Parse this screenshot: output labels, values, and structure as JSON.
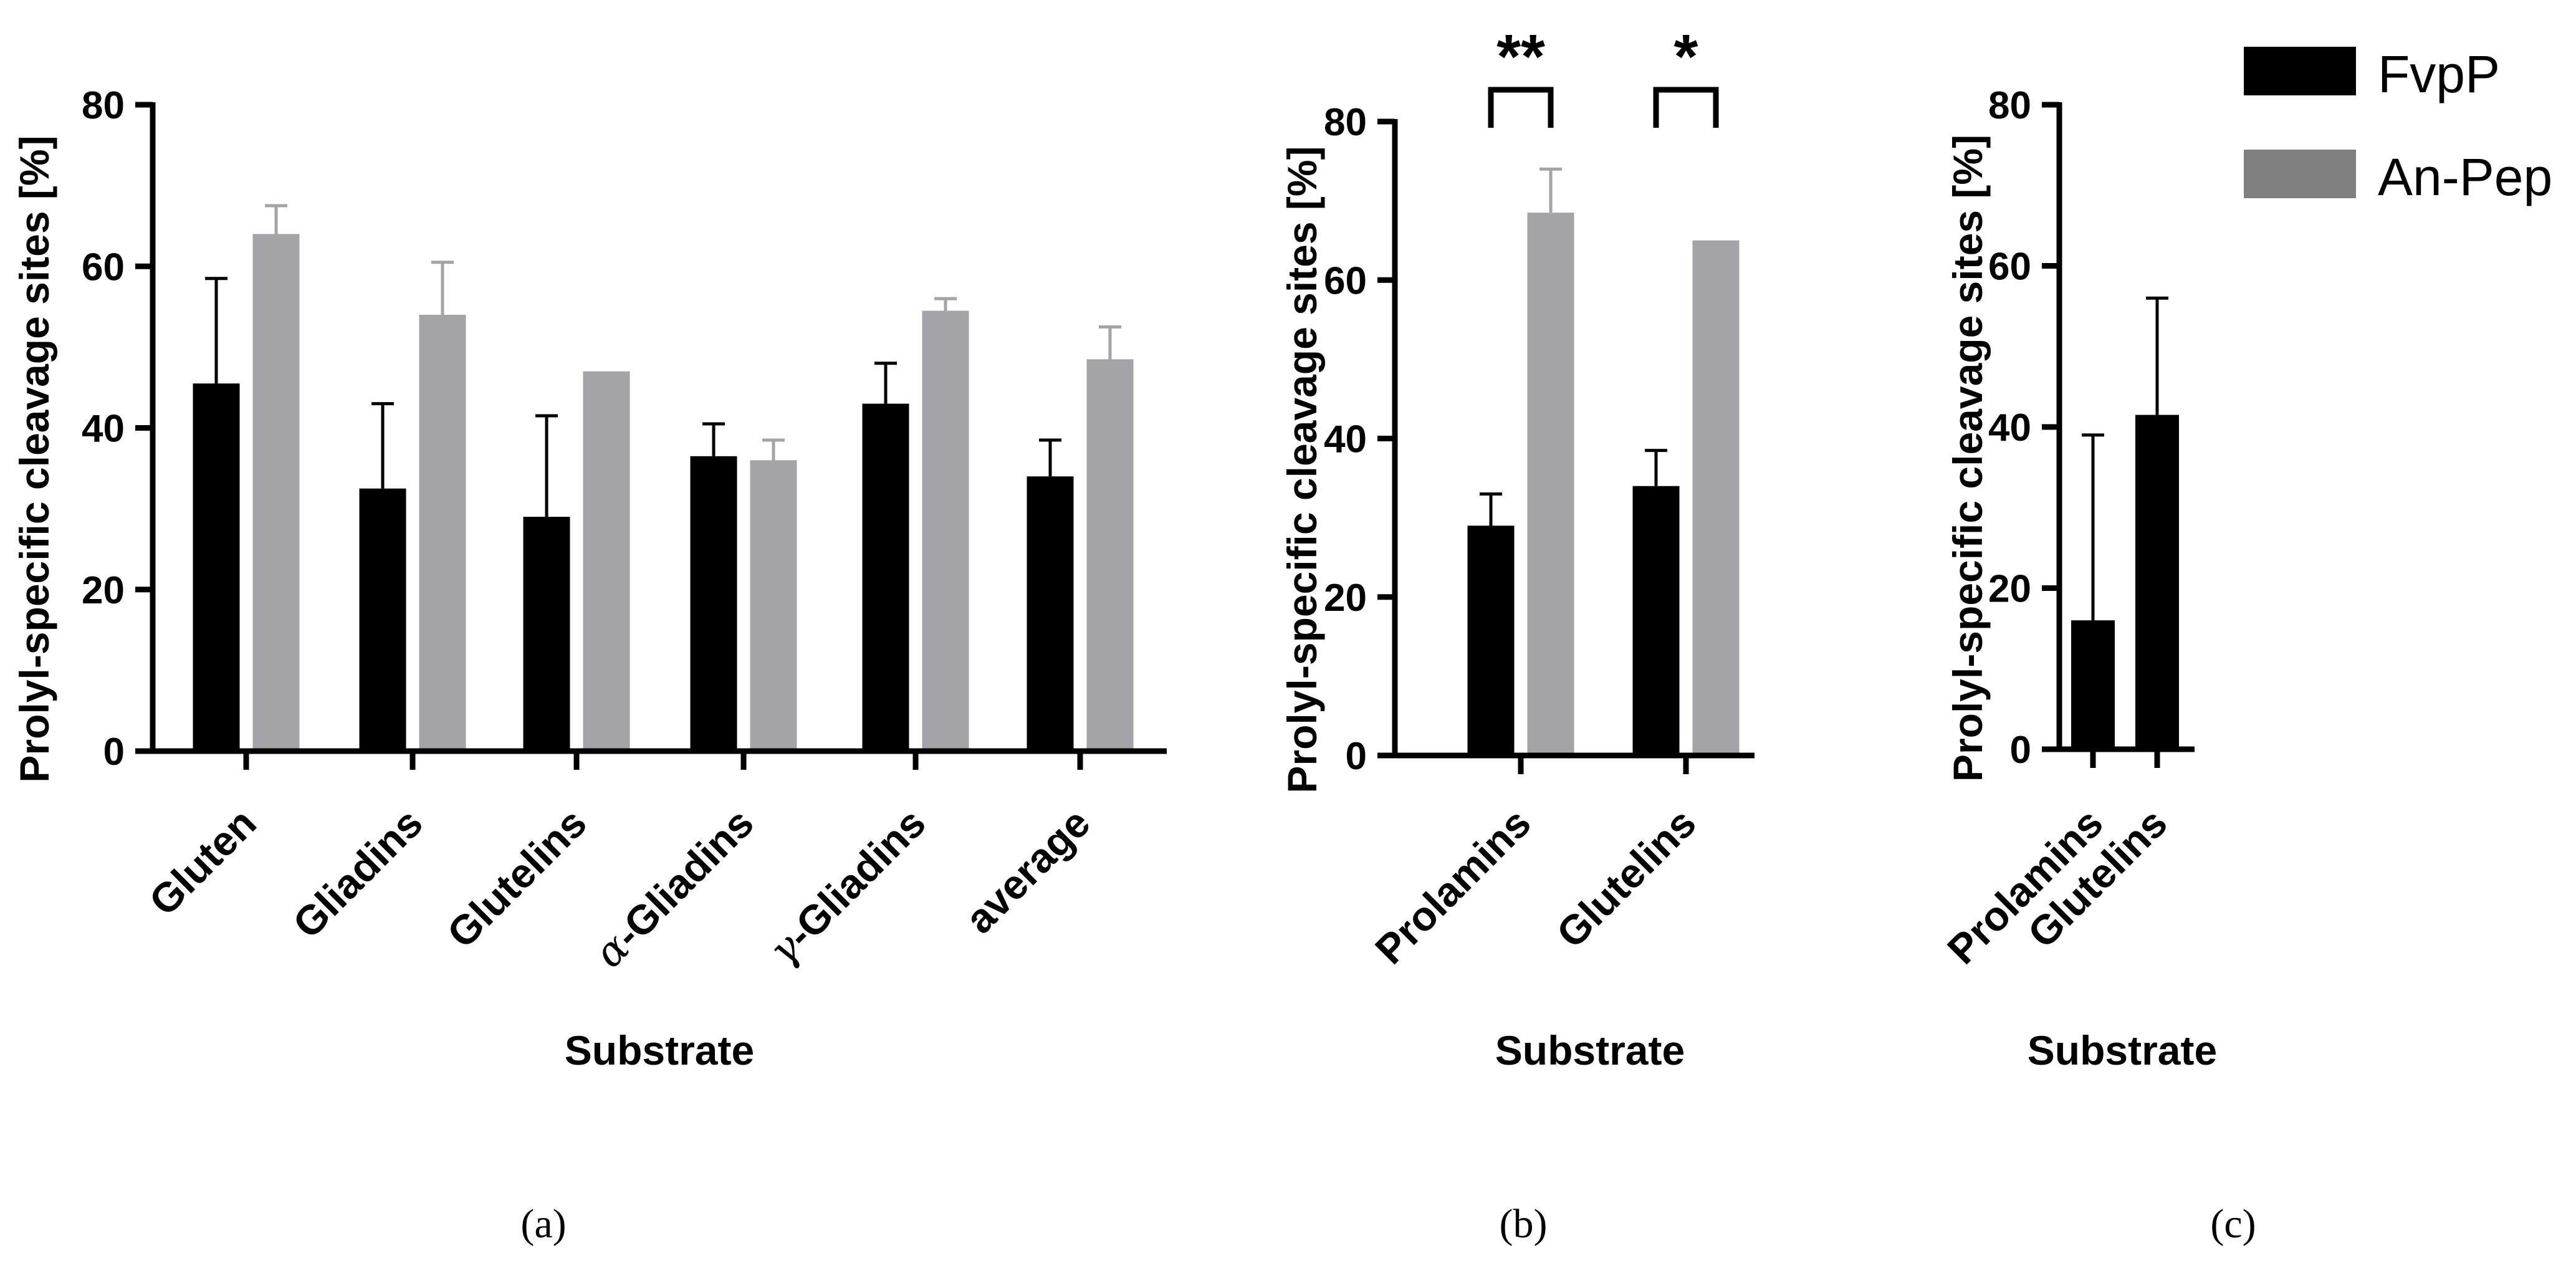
{
  "colors": {
    "FvpP": "#000000",
    "An-Pep": "#a3a3a8",
    "legend_An-Pep": "#808080"
  },
  "legend": {
    "entries": [
      "FvpP",
      "An-Pep"
    ],
    "placement": "top-right"
  },
  "chart_data": [
    {
      "panel": "(a)",
      "type": "bar",
      "xlabel": "Substrate",
      "ylabel": "Prolyl-specific cleavage sites [%]",
      "ylim": [
        0,
        80
      ],
      "yticks": [
        0,
        20,
        40,
        60,
        80
      ],
      "categories": [
        "Gluten",
        "Gliadins",
        "Glutelins",
        "α-Gliadins",
        "γ-Gliadins",
        "average"
      ],
      "series": [
        {
          "name": "FvpP",
          "values": [
            45.5,
            32.5,
            29,
            36.5,
            43,
            34
          ],
          "errors": [
            13,
            10.5,
            12.5,
            4,
            5,
            4.5
          ]
        },
        {
          "name": "An-Pep",
          "values": [
            64,
            54,
            47,
            36,
            54.5,
            48.5
          ],
          "errors": [
            3.5,
            6.5,
            0,
            2.5,
            1.5,
            4
          ]
        }
      ]
    },
    {
      "panel": "(b)",
      "type": "bar",
      "xlabel": "Substrate",
      "ylabel": "Prolyl-specific cleavage sites [%]",
      "ylim": [
        0,
        80
      ],
      "yticks": [
        0,
        20,
        40,
        60,
        80
      ],
      "categories": [
        "Prolamins",
        "Glutelins"
      ],
      "series": [
        {
          "name": "FvpP",
          "values": [
            29,
            34
          ],
          "errors": [
            4,
            4.5
          ]
        },
        {
          "name": "An-Pep",
          "values": [
            68.5,
            65
          ],
          "errors": [
            5.5,
            0
          ]
        }
      ],
      "significance": [
        "**",
        "*"
      ]
    },
    {
      "panel": "(c)",
      "type": "bar",
      "xlabel": "Substrate",
      "ylabel": "Prolyl-specific cleavage sites [%]",
      "ylim": [
        0,
        80
      ],
      "yticks": [
        0,
        20,
        40,
        60,
        80
      ],
      "categories": [
        "Prolamins",
        "Glutelins"
      ],
      "series": [
        {
          "name": "FvpP",
          "values": [
            16,
            41.5
          ],
          "errors": [
            23,
            14.5
          ]
        }
      ]
    }
  ]
}
